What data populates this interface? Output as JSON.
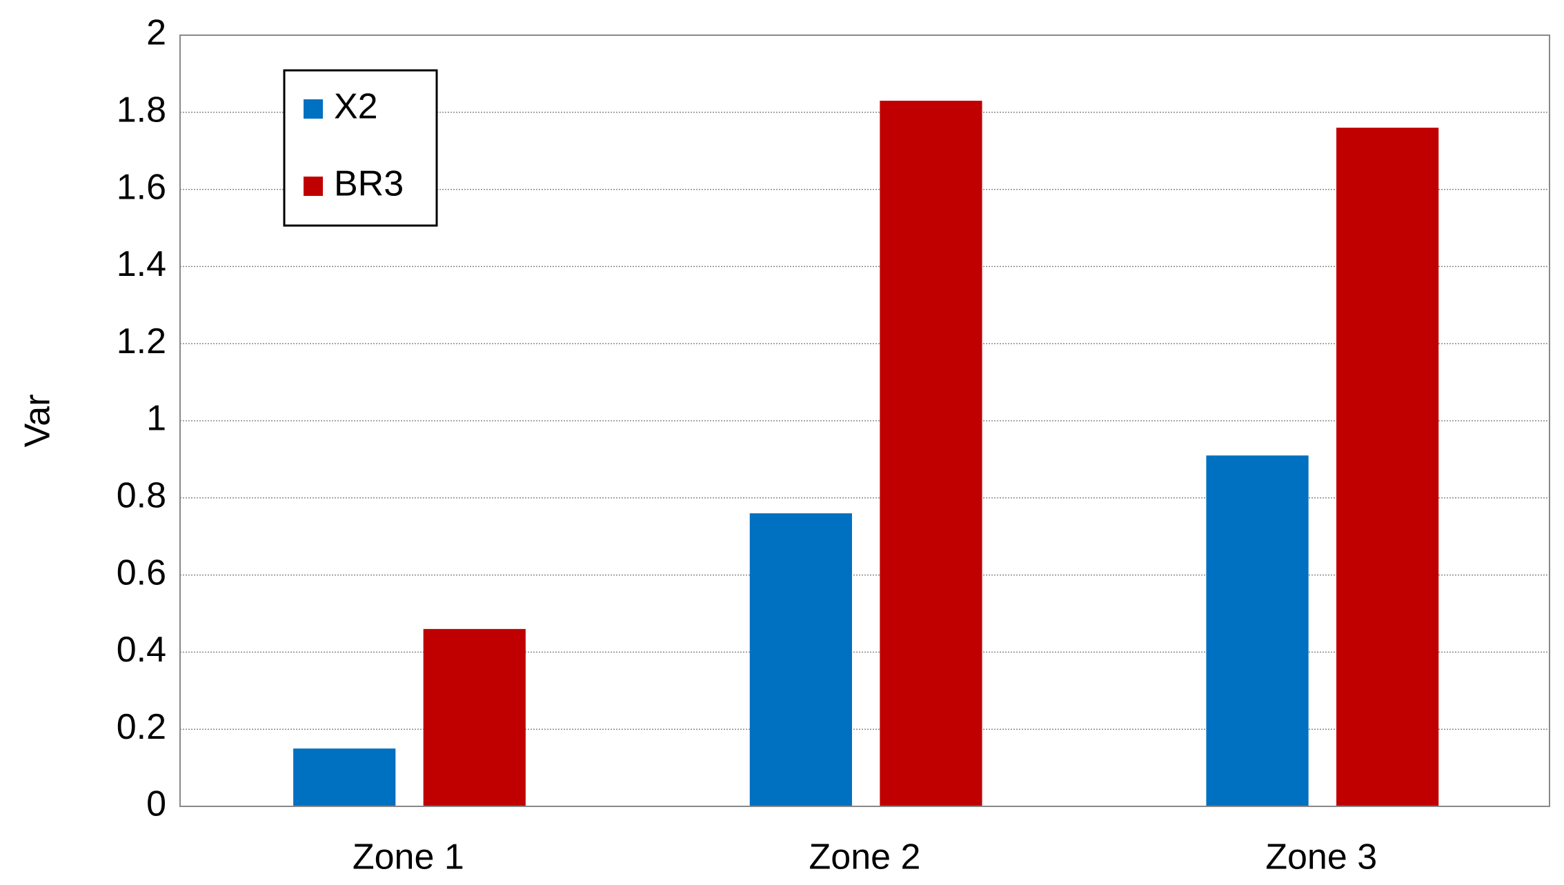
{
  "chart_data": {
    "type": "bar",
    "y_label": "Var",
    "categories": [
      "Zone 1",
      "Zone 2",
      "Zone 3"
    ],
    "series": [
      {
        "name": "X2",
        "color": "#0070c0",
        "values": [
          0.15,
          0.76,
          0.91
        ]
      },
      {
        "name": "BR3",
        "color": "#c00000",
        "values": [
          0.46,
          1.83,
          1.76
        ]
      }
    ],
    "ylim": [
      0,
      2
    ],
    "yticks": [
      0,
      0.2,
      0.4,
      0.6,
      0.8,
      1,
      1.2,
      1.4,
      1.6,
      1.8,
      2
    ],
    "grid": true,
    "legend": "upper left"
  }
}
